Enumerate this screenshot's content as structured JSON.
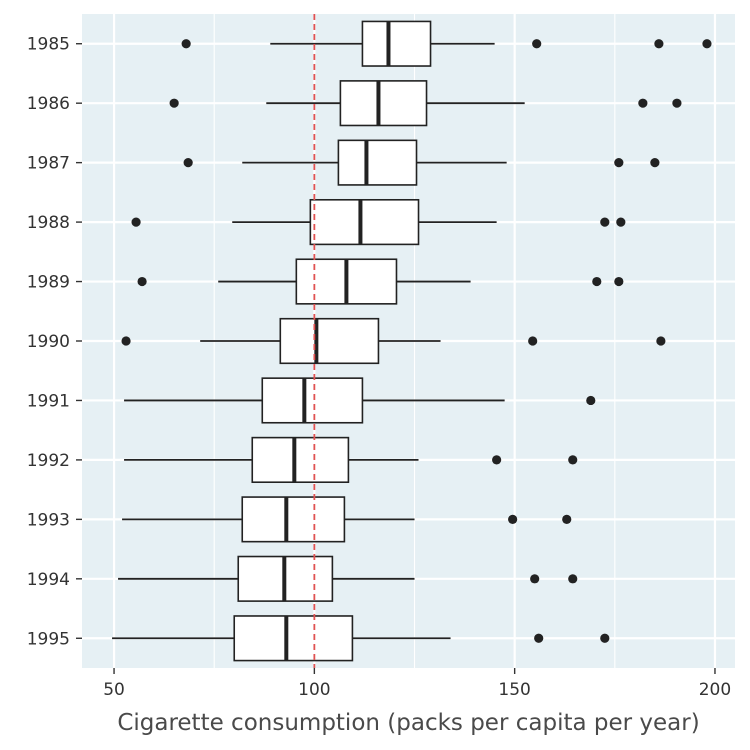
{
  "chart_data": {
    "type": "boxplot",
    "orientation": "horizontal",
    "title": "",
    "xlabel": "Cigarette consumption (packs per capita per year)",
    "ylabel": "",
    "xlim": [
      42,
      205
    ],
    "x_ticks": [
      50,
      100,
      150,
      200
    ],
    "categories": [
      "1985",
      "1986",
      "1987",
      "1988",
      "1989",
      "1990",
      "1991",
      "1992",
      "1993",
      "1994",
      "1995"
    ],
    "reference_line": {
      "x": 100,
      "color": "#e05252",
      "style": "dashed"
    },
    "grid": true,
    "panel_background": "#e6f0f4",
    "grid_color": "#ffffff",
    "box_fill": "#ffffff",
    "box_stroke": "#222222",
    "outlier_color": "#222222",
    "series": [
      {
        "category": "1985",
        "whisker_low": 89,
        "q1": 112,
        "median": 118.5,
        "q3": 129,
        "whisker_high": 145,
        "outliers": [
          68,
          155.5,
          186,
          198
        ]
      },
      {
        "category": "1986",
        "whisker_low": 88,
        "q1": 106.5,
        "median": 116,
        "q3": 128,
        "whisker_high": 152.5,
        "outliers": [
          65,
          182,
          190.5
        ]
      },
      {
        "category": "1987",
        "whisker_low": 82,
        "q1": 106,
        "median": 113,
        "q3": 125.5,
        "whisker_high": 148,
        "outliers": [
          68.5,
          176,
          185
        ]
      },
      {
        "category": "1988",
        "whisker_low": 79.5,
        "q1": 99,
        "median": 111.5,
        "q3": 126,
        "whisker_high": 145.5,
        "outliers": [
          55.5,
          172.5,
          176.5
        ]
      },
      {
        "category": "1989",
        "whisker_low": 76,
        "q1": 95.5,
        "median": 108,
        "q3": 120.5,
        "whisker_high": 139,
        "outliers": [
          57,
          170.5,
          176
        ]
      },
      {
        "category": "1990",
        "whisker_low": 71.5,
        "q1": 91.5,
        "median": 100.5,
        "q3": 116,
        "whisker_high": 131.5,
        "outliers": [
          53,
          154.5,
          186.5
        ]
      },
      {
        "category": "1991",
        "whisker_low": 52.5,
        "q1": 87,
        "median": 97.5,
        "q3": 112,
        "whisker_high": 147.5,
        "outliers": [
          169
        ]
      },
      {
        "category": "1992",
        "whisker_low": 52.5,
        "q1": 84.5,
        "median": 95,
        "q3": 108.5,
        "whisker_high": 126,
        "outliers": [
          145.5,
          164.5
        ]
      },
      {
        "category": "1993",
        "whisker_low": 52,
        "q1": 82,
        "median": 93,
        "q3": 107.5,
        "whisker_high": 125,
        "outliers": [
          149.5,
          163
        ]
      },
      {
        "category": "1994",
        "whisker_low": 51,
        "q1": 81,
        "median": 92.5,
        "q3": 104.5,
        "whisker_high": 125,
        "outliers": [
          155,
          164.5
        ]
      },
      {
        "category": "1995",
        "whisker_low": 49.5,
        "q1": 80,
        "median": 93,
        "q3": 109.5,
        "whisker_high": 134,
        "outliers": [
          156,
          172.5
        ]
      }
    ]
  }
}
